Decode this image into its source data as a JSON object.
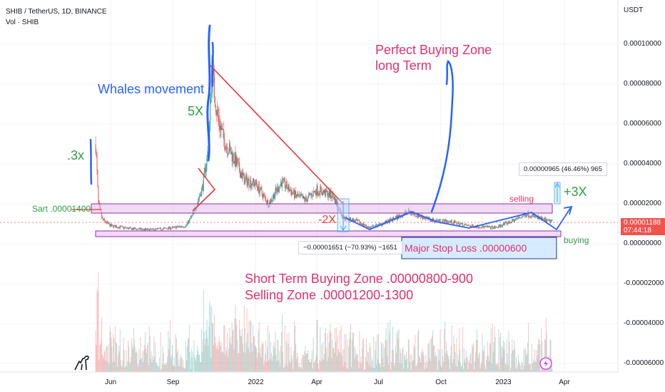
{
  "header": {
    "symbol_line": "SHIB / TetherUS, 1D, BINANCE",
    "volume_line": "Vol · SHIB"
  },
  "price_axis": {
    "currency": "USDT",
    "ticks": [
      "0.00010000",
      "0.00008000",
      "0.00006000",
      "0.00004000",
      "0.00002000",
      "0.00000000",
      "-0.00002000",
      "-0.00004000",
      "-0.00006000"
    ],
    "last_price": "0.00001188",
    "countdown": "07:44:18"
  },
  "time_axis": {
    "ticks": [
      "Jun",
      "Sep",
      "2022",
      "Apr",
      "Jul",
      "Oct",
      "2023",
      "Apr"
    ]
  },
  "annotations": {
    "whales": "Whales movement",
    "five_x": "5X",
    "three_x_left": ".3x",
    "start": "Sart .00001400",
    "perfect_zone_1": "Perfect Buying Zone",
    "perfect_zone_2": "long Term",
    "minus_2x": "-2X",
    "stop_loss": "Major Stop Loss .00000600",
    "short_term": "Short Term Buying Zone .00000800-900",
    "selling_zone": "Selling Zone .00001200-1300",
    "selling": "selling",
    "buying": "buying",
    "plus_3x": "+3X",
    "measure_down": "−0.00001651 (−70.93%) −1651",
    "measure_up": "0.00000965 (46.46%) 965"
  },
  "chart_data": {
    "type": "candlestick",
    "symbol": "SHIB / TetherUS",
    "interval": "1D",
    "exchange": "BINANCE",
    "price_range": [
      -6.5e-05,
      0.000127
    ],
    "last_price": 1.188e-05,
    "key_levels": {
      "start": 1.4e-05,
      "stop_loss": 6e-06,
      "short_term_buy": [
        8e-06,
        9e-06
      ],
      "sell_zone": [
        1.2e-05,
        1.3e-05
      ]
    },
    "price_path": [
      {
        "date": "2021-05-10",
        "close": 5e-05
      },
      {
        "date": "2021-05-14",
        "close": 2e-05
      },
      {
        "date": "2021-05-20",
        "close": 1.2e-05
      },
      {
        "date": "2021-06-01",
        "close": 9e-06
      },
      {
        "date": "2021-07-01",
        "close": 7.5e-06
      },
      {
        "date": "2021-08-01",
        "close": 7e-06
      },
      {
        "date": "2021-09-01",
        "close": 8e-06
      },
      {
        "date": "2021-09-20",
        "close": 9e-06
      },
      {
        "date": "2021-10-01",
        "close": 1.5e-05
      },
      {
        "date": "2021-10-15",
        "close": 2.9e-05
      },
      {
        "date": "2021-10-24",
        "close": 5e-05
      },
      {
        "date": "2021-10-28",
        "close": 8.8e-05
      },
      {
        "date": "2021-11-05",
        "close": 6.5e-05
      },
      {
        "date": "2021-11-15",
        "close": 5.2e-05
      },
      {
        "date": "2021-12-01",
        "close": 4.2e-05
      },
      {
        "date": "2021-12-15",
        "close": 3.2e-05
      },
      {
        "date": "2022-01-01",
        "close": 3e-05
      },
      {
        "date": "2022-01-20",
        "close": 2e-05
      },
      {
        "date": "2022-02-08",
        "close": 3.1e-05
      },
      {
        "date": "2022-03-01",
        "close": 2.4e-05
      },
      {
        "date": "2022-03-15",
        "close": 2.2e-05
      },
      {
        "date": "2022-04-01",
        "close": 2.7e-05
      },
      {
        "date": "2022-04-25",
        "close": 2.4e-05
      },
      {
        "date": "2022-05-10",
        "close": 1.3e-05
      },
      {
        "date": "2022-06-01",
        "close": 1.1e-05
      },
      {
        "date": "2022-06-18",
        "close": 8e-06
      },
      {
        "date": "2022-07-15",
        "close": 1.1e-05
      },
      {
        "date": "2022-08-14",
        "close": 1.6e-05
      },
      {
        "date": "2022-09-15",
        "close": 1.2e-05
      },
      {
        "date": "2022-10-15",
        "close": 1.1e-05
      },
      {
        "date": "2022-11-10",
        "close": 9e-06
      },
      {
        "date": "2022-12-20",
        "close": 8e-06
      },
      {
        "date": "2023-01-15",
        "close": 1.15e-05
      },
      {
        "date": "2023-02-05",
        "close": 1.5e-05
      },
      {
        "date": "2023-02-20",
        "close": 1.3e-05
      },
      {
        "date": "2023-03-10",
        "close": 1.1e-05
      },
      {
        "date": "2023-03-14",
        "close": 1.19e-05
      }
    ]
  }
}
